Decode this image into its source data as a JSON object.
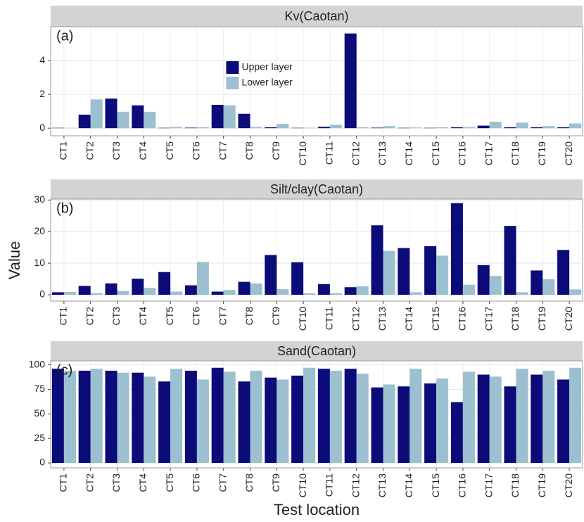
{
  "ylabel": "Value",
  "xlabel": "Test location",
  "chart_data": [
    {
      "type": "bar",
      "title": "Kv(Caotan)",
      "annotation": "(a)",
      "legend": "top-center",
      "grid": true,
      "categories": [
        "CT1",
        "CT2",
        "CT3",
        "CT4",
        "CT5",
        "CT6",
        "CT7",
        "CT8",
        "CT9",
        "CT10",
        "CT11",
        "CT12",
        "CT13",
        "CT14",
        "CT15",
        "CT16",
        "CT17",
        "CT18",
        "CT19",
        "CT20"
      ],
      "ylim": [
        -0.45,
        6.0
      ],
      "yticks": [
        0,
        2,
        4
      ],
      "series": [
        {
          "name": "Upper layer",
          "color": "#0b0b7a",
          "values": [
            0.02,
            0.8,
            1.75,
            1.35,
            0.02,
            0.03,
            1.38,
            0.85,
            0.05,
            0.02,
            0.08,
            5.6,
            0.03,
            0.02,
            0.02,
            0.05,
            0.15,
            0.05,
            0.05,
            0.05
          ]
        },
        {
          "name": "Lower layer",
          "color": "#9cc0cf",
          "values": [
            0.02,
            1.7,
            0.97,
            0.97,
            0.07,
            0.05,
            1.35,
            0.07,
            0.25,
            0.03,
            0.2,
            0.05,
            0.12,
            0.04,
            0.05,
            0.07,
            0.38,
            0.33,
            0.12,
            0.28
          ]
        }
      ]
    },
    {
      "type": "bar",
      "title": "Silt/clay(Caotan)",
      "annotation": "(b)",
      "grid": true,
      "categories": [
        "CT1",
        "CT2",
        "CT3",
        "CT4",
        "CT5",
        "CT6",
        "CT7",
        "CT8",
        "CT9",
        "CT10",
        "CT11",
        "CT12",
        "CT13",
        "CT14",
        "CT15",
        "CT16",
        "CT17",
        "CT18",
        "CT19",
        "CT20"
      ],
      "ylim": [
        -2,
        30.3
      ],
      "yticks": [
        0,
        10,
        20,
        30
      ],
      "series": [
        {
          "color": "#0b0b7a",
          "values": [
            0.8,
            2.8,
            3.6,
            5.1,
            7.2,
            3.0,
            1.0,
            4.1,
            12.6,
            10.3,
            3.4,
            2.4,
            22,
            14.8,
            15.4,
            29,
            9.4,
            21.8,
            7.7,
            14.2
          ]
        },
        {
          "color": "#9cc0cf",
          "values": [
            0.9,
            0.5,
            1.2,
            2.2,
            1.0,
            10.4,
            1.5,
            3.6,
            1.8,
            0.5,
            0.5,
            2.7,
            13.9,
            0.8,
            12.4,
            3.2,
            6.0,
            0.8,
            4.9,
            1.7
          ]
        }
      ]
    },
    {
      "type": "bar",
      "title": "Sand(Caotan)",
      "annotation": "(c)",
      "grid": true,
      "categories": [
        "CT1",
        "CT2",
        "CT3",
        "CT4",
        "CT5",
        "CT6",
        "CT7",
        "CT8",
        "CT9",
        "CT10",
        "CT11",
        "CT12",
        "CT13",
        "CT14",
        "CT15",
        "CT16",
        "CT17",
        "CT18",
        "CT19",
        "CT20"
      ],
      "ylim": [
        -5,
        104
      ],
      "yticks": [
        0,
        25,
        50,
        75,
        100
      ],
      "series": [
        {
          "color": "#0b0b7a",
          "values": [
            96,
            94,
            94,
            92,
            83,
            94,
            97,
            83,
            87,
            89,
            96,
            96,
            77,
            78,
            81,
            62,
            90,
            78,
            90,
            85
          ]
        },
        {
          "color": "#9cc0cf",
          "values": [
            94,
            96,
            92,
            88,
            96,
            85,
            93,
            94,
            85,
            97,
            94,
            91,
            80,
            96,
            86,
            93,
            88,
            96,
            94,
            97
          ]
        }
      ]
    }
  ]
}
